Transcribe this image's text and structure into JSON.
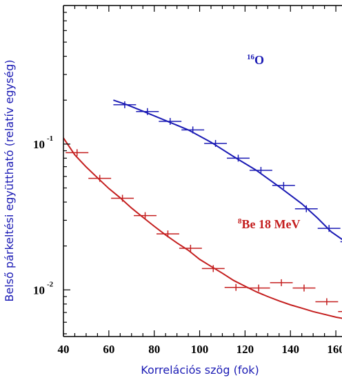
{
  "chart_data": {
    "type": "scatter",
    "xlabel": "Korrelációs szög (fok)",
    "ylabel": "Belső párkeltési együttható (relatív egység)",
    "xlim": [
      40,
      170
    ],
    "ylim_log10": [
      -2.32,
      -0.05
    ],
    "y_scale": "log",
    "grid": false,
    "x_ticks": [
      40,
      60,
      80,
      100,
      120,
      140,
      160
    ],
    "y_ticks": [
      {
        "value": 0.1,
        "mantissa": "10",
        "exponent": "-1"
      },
      {
        "value": 0.01,
        "mantissa": "10",
        "exponent": "-2"
      }
    ],
    "series": [
      {
        "name": "16O",
        "label_super": "16",
        "label_main": "O",
        "color": "#1a1ab4",
        "points": [
          {
            "x": 67,
            "y": 0.186
          },
          {
            "x": 77,
            "y": 0.167
          },
          {
            "x": 87,
            "y": 0.143
          },
          {
            "x": 97,
            "y": 0.125
          },
          {
            "x": 107,
            "y": 0.101
          },
          {
            "x": 117,
            "y": 0.08
          },
          {
            "x": 127,
            "y": 0.066
          },
          {
            "x": 137,
            "y": 0.052
          },
          {
            "x": 147,
            "y": 0.036
          },
          {
            "x": 157,
            "y": 0.0264
          },
          {
            "x": 167,
            "y": 0.0214
          }
        ],
        "curve": [
          {
            "x": 62,
            "y": 0.2
          },
          {
            "x": 68,
            "y": 0.186
          },
          {
            "x": 75,
            "y": 0.168
          },
          {
            "x": 85,
            "y": 0.145
          },
          {
            "x": 95,
            "y": 0.125
          },
          {
            "x": 105,
            "y": 0.103
          },
          {
            "x": 115,
            "y": 0.082
          },
          {
            "x": 125,
            "y": 0.066
          },
          {
            "x": 135,
            "y": 0.051
          },
          {
            "x": 145,
            "y": 0.039
          },
          {
            "x": 152,
            "y": 0.031
          },
          {
            "x": 158,
            "y": 0.025
          },
          {
            "x": 165,
            "y": 0.021
          },
          {
            "x": 170,
            "y": 0.0192
          }
        ]
      },
      {
        "name": "8Be 18 MeV",
        "label_super": "8",
        "label_main": "Be 18 MeV",
        "color": "#c41e1e",
        "points": [
          {
            "x": 46,
            "y": 0.0873
          },
          {
            "x": 56,
            "y": 0.0582
          },
          {
            "x": 66,
            "y": 0.0425
          },
          {
            "x": 76,
            "y": 0.0323
          },
          {
            "x": 86,
            "y": 0.0242
          },
          {
            "x": 96,
            "y": 0.0193
          },
          {
            "x": 106,
            "y": 0.014
          },
          {
            "x": 116,
            "y": 0.0104
          },
          {
            "x": 126,
            "y": 0.0103
          },
          {
            "x": 136,
            "y": 0.0112
          },
          {
            "x": 146,
            "y": 0.0103
          },
          {
            "x": 156,
            "y": 0.0083
          },
          {
            "x": 166,
            "y": 0.0071
          }
        ],
        "curve": [
          {
            "x": 40,
            "y": 0.11
          },
          {
            "x": 45,
            "y": 0.0843
          },
          {
            "x": 50,
            "y": 0.0697
          },
          {
            "x": 55,
            "y": 0.0587
          },
          {
            "x": 60,
            "y": 0.0496
          },
          {
            "x": 65,
            "y": 0.0428
          },
          {
            "x": 70,
            "y": 0.0364
          },
          {
            "x": 75,
            "y": 0.0315
          },
          {
            "x": 80,
            "y": 0.0273
          },
          {
            "x": 85,
            "y": 0.0238
          },
          {
            "x": 90,
            "y": 0.021
          },
          {
            "x": 95,
            "y": 0.0187
          },
          {
            "x": 100,
            "y": 0.0162
          },
          {
            "x": 105,
            "y": 0.0145
          },
          {
            "x": 110,
            "y": 0.013
          },
          {
            "x": 115,
            "y": 0.0116
          },
          {
            "x": 120,
            "y": 0.0106
          },
          {
            "x": 125,
            "y": 0.0097
          },
          {
            "x": 130,
            "y": 0.009
          },
          {
            "x": 135,
            "y": 0.0084
          },
          {
            "x": 140,
            "y": 0.0079
          },
          {
            "x": 145,
            "y": 0.0075
          },
          {
            "x": 150,
            "y": 0.0071
          },
          {
            "x": 155,
            "y": 0.0068
          },
          {
            "x": 160,
            "y": 0.0065
          },
          {
            "x": 165,
            "y": 0.0063
          },
          {
            "x": 170,
            "y": 0.0062
          }
        ]
      }
    ],
    "x_error_halfwidth": 5
  }
}
